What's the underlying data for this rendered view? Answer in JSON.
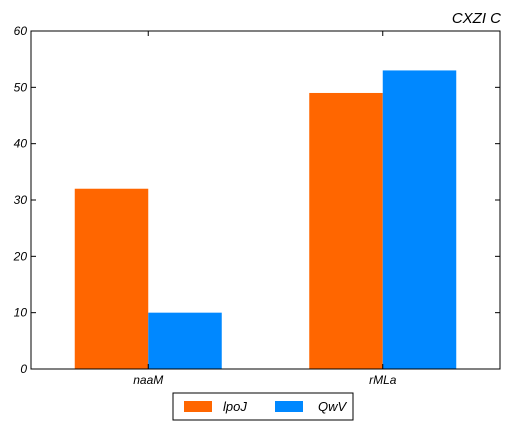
{
  "chart_data": {
    "type": "bar",
    "title": "CXZI C",
    "xlabel": "",
    "ylabel": "",
    "categories": [
      "naaM",
      "rMLa"
    ],
    "series": [
      {
        "name": "lpoJ",
        "values": [
          32,
          49
        ],
        "color": "#ff6600"
      },
      {
        "name": "QwV",
        "values": [
          10,
          53
        ],
        "color": "#0088ff"
      }
    ],
    "ylim": [
      0,
      60
    ],
    "yticks": [
      0,
      10,
      20,
      30,
      40,
      50,
      60
    ],
    "grid": false,
    "legend": "bottom-center"
  }
}
